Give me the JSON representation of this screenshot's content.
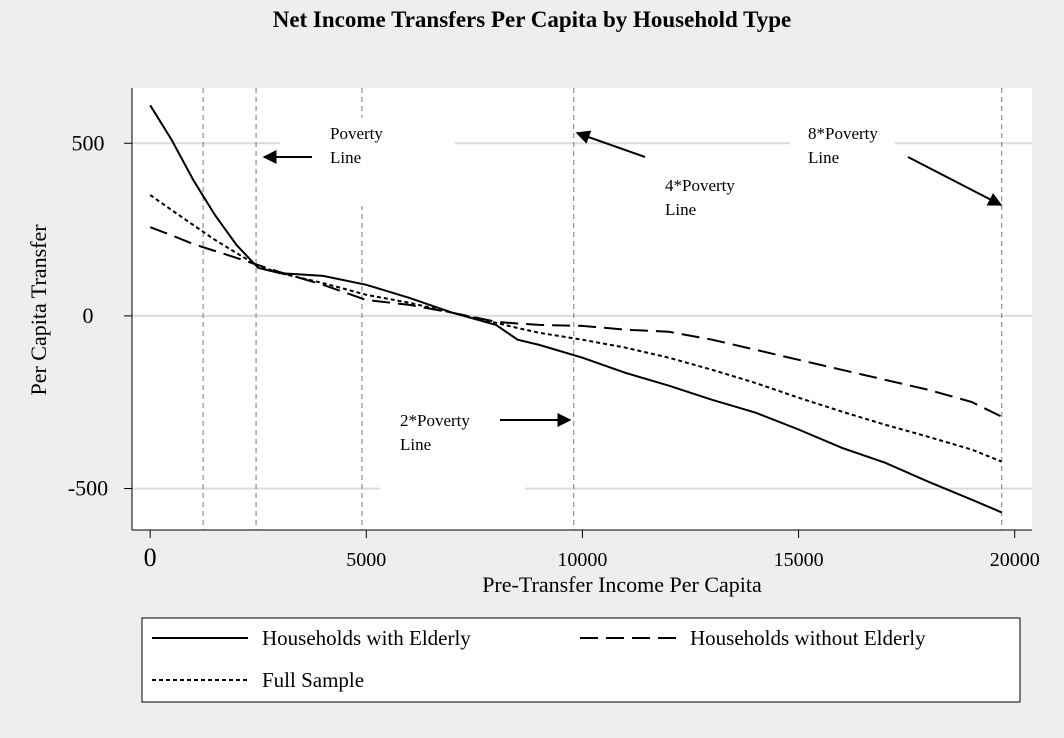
{
  "chart_data": {
    "type": "line",
    "title": "Net Income Transfers Per Capita by Household Type",
    "x_label": "Pre-Transfer Income Per Capita",
    "y_label": "Per Capita Transfer",
    "xlim": [
      -420,
      20400
    ],
    "ylim": [
      -620,
      660
    ],
    "xticks": [
      0,
      5000,
      10000,
      15000,
      20000
    ],
    "yticks": [
      -500,
      0,
      500
    ],
    "grid": true,
    "reference_lines": [
      1225,
      2450,
      4900,
      9800,
      19700
    ],
    "x": [
      0,
      500,
      1000,
      1500,
      2000,
      2500,
      3000,
      4000,
      5000,
      6000,
      7000,
      8000,
      8500,
      9000,
      10000,
      11000,
      12000,
      13000,
      14000,
      15000,
      16000,
      17000,
      18000,
      19000,
      19700
    ],
    "series": [
      {
        "name": "Households with Elderly",
        "color": "#000000",
        "dash": "none",
        "values": [
          610,
          509,
          393,
          292,
          205,
          139,
          124,
          116,
          90,
          52,
          9,
          -26,
          -69,
          -84,
          -121,
          -165,
          -202,
          -243,
          -280,
          -329,
          -382,
          -425,
          -480,
          -532,
          -569
        ]
      },
      {
        "name": "Households without Elderly",
        "color": "#000000",
        "dash": "18 8",
        "values": [
          257,
          233,
          208,
          188,
          168,
          147,
          127,
          90,
          46,
          32,
          9,
          -17,
          -22,
          -26,
          -29,
          -40,
          -46,
          -69,
          -98,
          -127,
          -156,
          -185,
          -214,
          -249,
          -292
        ]
      },
      {
        "name": "Full Sample",
        "color": "#000000",
        "dash": "4 3",
        "values": [
          350,
          306,
          263,
          220,
          182,
          145,
          124,
          95,
          61,
          38,
          9,
          -20,
          -35,
          -49,
          -69,
          -92,
          -121,
          -156,
          -194,
          -237,
          -277,
          -315,
          -350,
          -387,
          -422
        ]
      }
    ],
    "annotations": [
      {
        "lines": [
          "Poverty",
          "Line"
        ]
      },
      {
        "lines": [
          "4*Poverty",
          "Line"
        ]
      },
      {
        "lines": [
          "8*Poverty",
          "Line"
        ]
      },
      {
        "lines": [
          "2*Poverty",
          "Line"
        ]
      }
    ]
  }
}
